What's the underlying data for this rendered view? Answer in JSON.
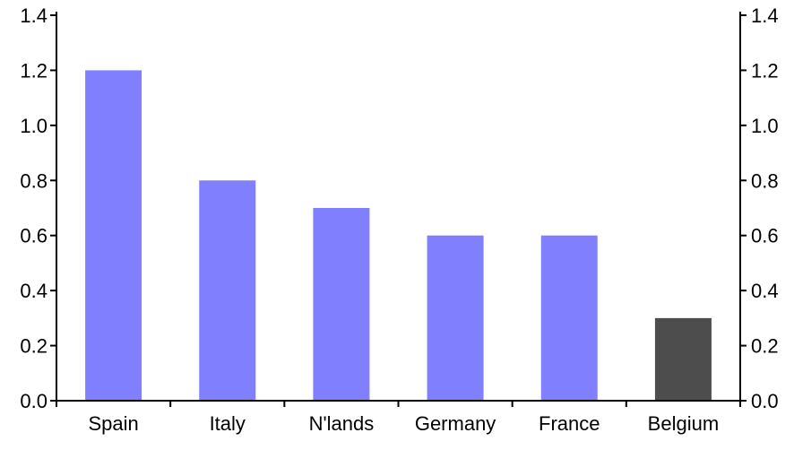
{
  "chart_data": {
    "type": "bar",
    "categories": [
      "Spain",
      "Italy",
      "N'lands",
      "Germany",
      "France",
      "Belgium"
    ],
    "values": [
      1.2,
      0.8,
      0.7,
      0.6,
      0.6,
      0.3
    ],
    "colors": [
      "#8080FF",
      "#8080FF",
      "#8080FF",
      "#8080FF",
      "#8080FF",
      "#4D4D4D"
    ],
    "title": "",
    "xlabel": "",
    "ylabel": "",
    "ylim": [
      0,
      1.4
    ],
    "yticks": [
      "0.0",
      "0.2",
      "0.4",
      "0.6",
      "0.8",
      "1.0",
      "1.2",
      "1.4"
    ],
    "y_axis_sides": [
      "left",
      "right"
    ],
    "grid": false,
    "legend": "none"
  }
}
